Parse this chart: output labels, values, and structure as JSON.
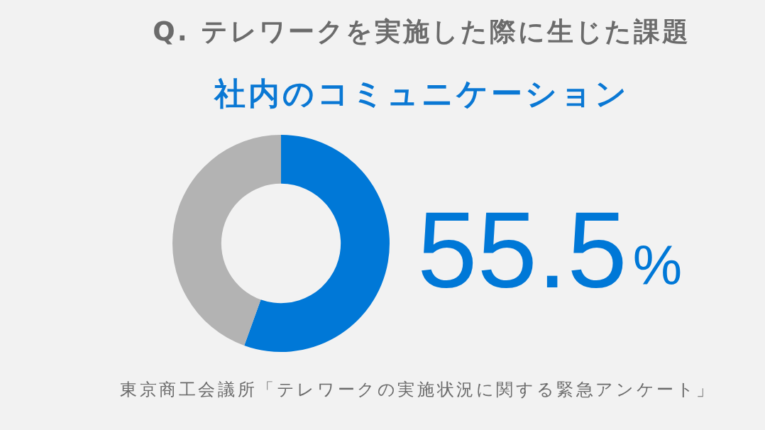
{
  "chart_data": {
    "type": "donut",
    "title": "Q. テレワークを実施した際に生じた課題",
    "subtitle": "社内のコミュニケーション",
    "categories": [
      null,
      null
    ],
    "values": [
      55.5,
      44.5
    ],
    "colors": [
      "#0078d7",
      "#b3b3b3"
    ],
    "value_labels": [
      "55.5%",
      null
    ],
    "annotations": [
      "東京商工会議所「テレワークの実施状況に関する緊急アンケート」"
    ]
  }
}
